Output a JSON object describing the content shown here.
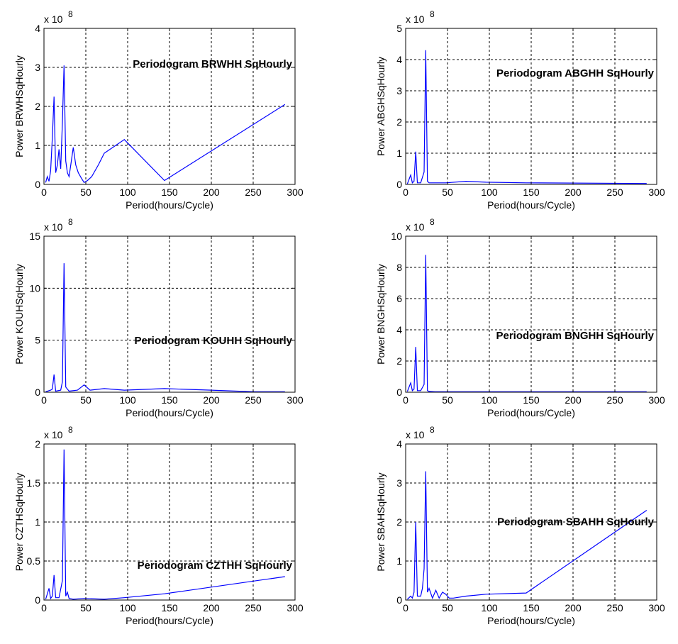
{
  "chart_data": [
    {
      "type": "line",
      "title": "",
      "annotation": "Periodogram BRWHH SqHourly",
      "xlabel": "Period(hours/Cycle)",
      "ylabel": "Power BRWHSqHourly",
      "y_exponent": "x 10",
      "y_exponent_power": "8",
      "xlim": [
        0,
        300
      ],
      "ylim": [
        0,
        4
      ],
      "xticks": [
        0,
        50,
        100,
        150,
        200,
        250,
        300
      ],
      "yticks": [
        0,
        1,
        2,
        3,
        4
      ],
      "grid": true,
      "series": [
        {
          "x": [
            2,
            4,
            6,
            8,
            10,
            12,
            14,
            16,
            18,
            20,
            22,
            24,
            26,
            28,
            30,
            32,
            35,
            38,
            41,
            45,
            48,
            52,
            57,
            65,
            72,
            96,
            144,
            288
          ],
          "y": [
            0.05,
            0.2,
            0.08,
            0.35,
            1.2,
            2.25,
            0.3,
            0.5,
            0.9,
            0.4,
            1.6,
            3.05,
            0.6,
            0.3,
            0.2,
            0.5,
            0.95,
            0.5,
            0.3,
            0.15,
            0.05,
            0.1,
            0.2,
            0.5,
            0.8,
            1.15,
            0.1,
            2.05
          ]
        }
      ]
    },
    {
      "type": "line",
      "title": "",
      "annotation": "Periodogram ABGHH SqHourly",
      "xlabel": "Period(hours/Cycle)",
      "ylabel": "Power ABGHSqHourly",
      "y_exponent": "x 10",
      "y_exponent_power": "8",
      "xlim": [
        0,
        300
      ],
      "ylim": [
        0,
        5
      ],
      "xticks": [
        0,
        50,
        100,
        150,
        200,
        250,
        300
      ],
      "yticks": [
        0,
        1,
        2,
        3,
        4,
        5
      ],
      "grid": true,
      "series": [
        {
          "x": [
            2,
            6,
            8,
            10,
            12,
            14,
            18,
            22,
            24,
            26,
            28,
            35,
            48,
            72,
            96,
            144,
            288
          ],
          "y": [
            0.02,
            0.3,
            0.05,
            0.1,
            1.05,
            0.05,
            0.05,
            0.4,
            4.3,
            0.1,
            0.05,
            0.05,
            0.05,
            0.1,
            0.07,
            0.05,
            0.03
          ]
        }
      ]
    },
    {
      "type": "line",
      "title": "",
      "annotation": "Periodogram KOUHH SqHourly",
      "xlabel": "Period(hours/Cycle)",
      "ylabel": "Power KOUHSqHourly",
      "y_exponent": "x 10",
      "y_exponent_power": "8",
      "xlim": [
        0,
        300
      ],
      "ylim": [
        0,
        15
      ],
      "xticks": [
        0,
        50,
        100,
        150,
        200,
        250,
        300
      ],
      "yticks": [
        0,
        5,
        10,
        15
      ],
      "grid": true,
      "series": [
        {
          "x": [
            2,
            8,
            10,
            12,
            14,
            20,
            22,
            24,
            26,
            30,
            40,
            48,
            55,
            72,
            96,
            144,
            200,
            250,
            288
          ],
          "y": [
            0.05,
            0.2,
            0.3,
            1.7,
            0.1,
            0.2,
            1.0,
            12.4,
            0.5,
            0.1,
            0.2,
            0.7,
            0.2,
            0.35,
            0.2,
            0.35,
            0.2,
            0.05,
            0.05
          ]
        }
      ]
    },
    {
      "type": "line",
      "title": "",
      "annotation": "Periodogram BNGHH SqHourly",
      "xlabel": "Period(hours/Cycle)",
      "ylabel": "Power BNGHSqHourly",
      "y_exponent": "x 10",
      "y_exponent_power": "8",
      "xlim": [
        0,
        300
      ],
      "ylim": [
        0,
        10
      ],
      "xticks": [
        0,
        50,
        100,
        150,
        200,
        250,
        300
      ],
      "yticks": [
        0,
        2,
        4,
        6,
        8,
        10
      ],
      "grid": true,
      "series": [
        {
          "x": [
            2,
            6,
            8,
            10,
            12,
            14,
            18,
            22,
            24,
            26,
            28,
            35,
            48,
            72,
            96,
            144,
            288
          ],
          "y": [
            0.05,
            0.6,
            0.1,
            0.2,
            2.9,
            0.1,
            0.1,
            0.5,
            8.8,
            0.1,
            0.05,
            0.03,
            0.03,
            0.03,
            0.03,
            0.03,
            0.03
          ]
        }
      ]
    },
    {
      "type": "line",
      "title": "",
      "annotation": "Periodogram CZTHH SqHourly",
      "xlabel": "Period(hours/Cycle)",
      "ylabel": "Power CZTHSqHourly",
      "y_exponent": "x 10",
      "y_exponent_power": "8",
      "xlim": [
        0,
        300
      ],
      "ylim": [
        0,
        2
      ],
      "xticks": [
        0,
        50,
        100,
        150,
        200,
        250,
        300
      ],
      "yticks": [
        0,
        0.5,
        1,
        1.5,
        2
      ],
      "grid": true,
      "series": [
        {
          "x": [
            2,
            6,
            8,
            10,
            12,
            14,
            18,
            22,
            24,
            26,
            28,
            30,
            35,
            48,
            72,
            96,
            144,
            288
          ],
          "y": [
            0.01,
            0.15,
            0.02,
            0.05,
            0.32,
            0.03,
            0.03,
            0.25,
            1.93,
            0.05,
            0.1,
            0.02,
            0.01,
            0.02,
            0.01,
            0.03,
            0.08,
            0.3
          ]
        }
      ]
    },
    {
      "type": "line",
      "title": "",
      "annotation": "Periodogram SBAHH SqHourly",
      "xlabel": "Period(hours/Cycle)",
      "ylabel": "Power SBAHSqHourly",
      "y_exponent": "x 10",
      "y_exponent_power": "8",
      "xlim": [
        0,
        300
      ],
      "ylim": [
        0,
        4
      ],
      "xticks": [
        0,
        50,
        100,
        150,
        200,
        250,
        300
      ],
      "yticks": [
        0,
        1,
        2,
        3,
        4
      ],
      "grid": true,
      "series": [
        {
          "x": [
            2,
            6,
            8,
            10,
            12,
            14,
            18,
            20,
            22,
            24,
            26,
            28,
            32,
            36,
            40,
            44,
            48,
            52,
            57,
            72,
            96,
            144,
            288
          ],
          "y": [
            0.02,
            0.1,
            0.05,
            0.2,
            2.0,
            0.1,
            0.1,
            0.3,
            0.8,
            3.3,
            0.2,
            0.3,
            0.05,
            0.25,
            0.05,
            0.2,
            0.15,
            0.05,
            0.05,
            0.1,
            0.15,
            0.18,
            2.3
          ]
        }
      ]
    }
  ],
  "colors": {
    "line": "#0000ff",
    "axis": "#000000",
    "grid": "#000000",
    "background": "#ffffff"
  }
}
